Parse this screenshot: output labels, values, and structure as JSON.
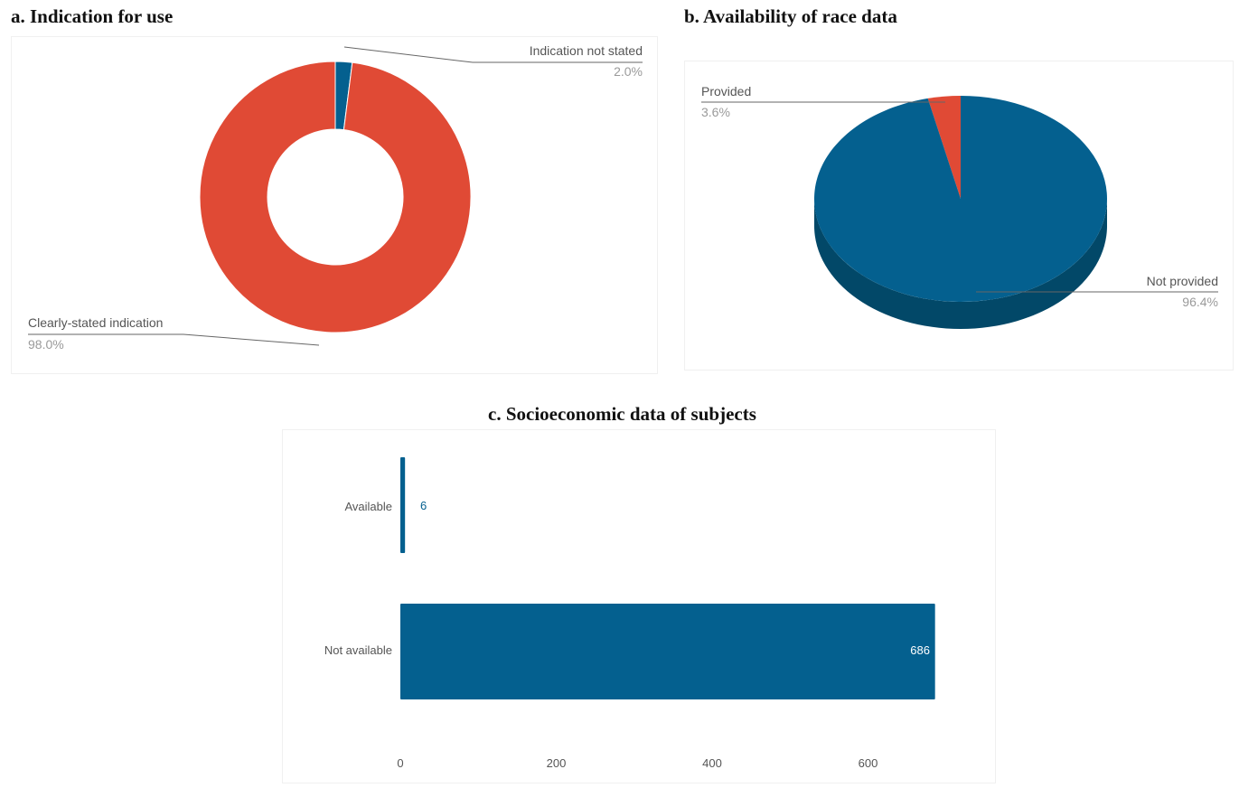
{
  "panel_a": {
    "title": "a. Indication for use"
  },
  "panel_b": {
    "title": "b. Availability of race data"
  },
  "panel_c": {
    "title": "c. Socioeconomic data of subjects"
  },
  "colors": {
    "blue": "#04608f",
    "blue_dark": "#024868",
    "red": "#e04a35"
  },
  "chart_data": [
    {
      "type": "pie",
      "variant": "donut",
      "title": "a. Indication for use",
      "slices": [
        {
          "label": "Indication not stated",
          "value": 2.0,
          "display": "2.0%",
          "color": "#04608f"
        },
        {
          "label": "Clearly-stated indication",
          "value": 98.0,
          "display": "98.0%",
          "color": "#e04a35"
        }
      ]
    },
    {
      "type": "pie",
      "variant": "3d",
      "title": "b. Availability of race data",
      "slices": [
        {
          "label": "Provided",
          "value": 3.6,
          "display": "3.6%",
          "color": "#e04a35"
        },
        {
          "label": "Not provided",
          "value": 96.4,
          "display": "96.4%",
          "color": "#04608f"
        }
      ]
    },
    {
      "type": "bar",
      "orientation": "horizontal",
      "title": "c. Socioeconomic data of subjects",
      "categories": [
        "Available",
        "Not available"
      ],
      "values": [
        6,
        686
      ],
      "value_labels": [
        "6",
        "686"
      ],
      "xticks": [
        "0",
        "200",
        "400",
        "600"
      ],
      "xlim": [
        0,
        700
      ],
      "grid": false,
      "color": "#04608f"
    }
  ]
}
